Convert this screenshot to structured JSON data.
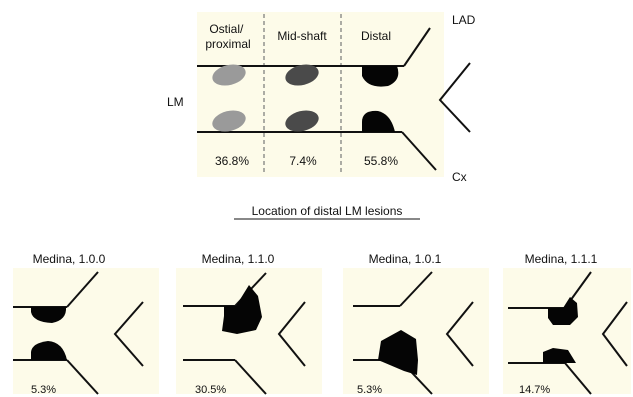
{
  "top": {
    "segments": [
      {
        "label_lines": [
          "Ostial/",
          "proximal"
        ],
        "percent": "36.8%",
        "shade": "#9a9a9a"
      },
      {
        "label_lines": [
          "Mid-shaft"
        ],
        "percent": "7.4%",
        "shade": "#4a4a4a"
      },
      {
        "label_lines": [
          "Distal"
        ],
        "percent": "55.8%",
        "shade": "#050505"
      }
    ],
    "lm_label": "LM",
    "lad_label": "LAD",
    "cx_label": "Cx"
  },
  "caption": "Location of distal LM lesions",
  "medina": [
    {
      "label": "Medina, 1.0.0",
      "percent": "5.3%"
    },
    {
      "label": "Medina, 1.1.0",
      "percent": "30.5%"
    },
    {
      "label": "Medina, 1.0.1",
      "percent": "5.3%"
    },
    {
      "label": "Medina, 1.1.1",
      "percent": "14.7%"
    }
  ],
  "colors": {
    "panel_bg": "#fdfbe9",
    "ink": "#111111",
    "divider": "#777777"
  }
}
